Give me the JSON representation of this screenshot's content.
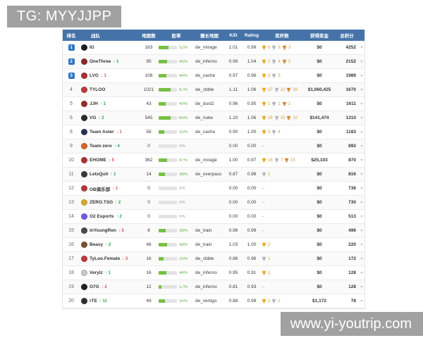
{
  "watermarks": {
    "top": "TG: MYYJJPP",
    "bottom": "www.yi-youtrip.com"
  },
  "colors": {
    "header_bg": "#4573a9",
    "badge_blue": "#2e75c3",
    "up_green": "#27a744",
    "down_red": "#d9534f",
    "bar_green": "#76c043",
    "watermark_gray": "#a1a1a1",
    "trophy_gold": "#e8a91c",
    "trophy_silver": "#b5b5bd",
    "trophy_bronze": "#d08a3e"
  },
  "table": {
    "headers": [
      "排名",
      "战队",
      "地图数",
      "胜率",
      "擅长地图",
      "K/D",
      "Rating",
      "奖杯数",
      "获得奖金",
      "总积分",
      ""
    ],
    "chevron_glyph": "▾",
    "no_trophy_text": "--",
    "rows": [
      {
        "rank": "1",
        "badge": true,
        "team": "IG",
        "logo_color": "#1f1f1f",
        "change": null,
        "maps": "163",
        "win_pct": 52,
        "win_label": "52%",
        "best_map": "de_mirage",
        "kd": "1.01",
        "rating": "0.99",
        "trophies": [
          {
            "t": "gold",
            "n": "6"
          },
          {
            "t": "silver",
            "n": "8"
          },
          {
            "t": "bronze",
            "n": "3"
          }
        ],
        "prize": "$0",
        "points": "4252"
      },
      {
        "rank": "2",
        "badge": true,
        "team": "OneThree",
        "logo_color": "#8d2a2a",
        "change": {
          "dir": "up",
          "n": "1"
        },
        "maps": "95",
        "win_pct": 45,
        "win_label": "45%",
        "best_map": "de_inferno",
        "kd": "0.99",
        "rating": "1.04",
        "trophies": [
          {
            "t": "gold",
            "n": "2"
          },
          {
            "t": "silver",
            "n": "4"
          },
          {
            "t": "bronze",
            "n": "2"
          }
        ],
        "prize": "$0",
        "points": "2152"
      },
      {
        "rank": "3",
        "badge": true,
        "team": "LVG",
        "logo_color": "#a83232",
        "change": {
          "dir": "down",
          "n": "1"
        },
        "maps": "108",
        "win_pct": 44,
        "win_label": "44%",
        "best_map": "de_cache",
        "kd": "0.97",
        "rating": "0.96",
        "trophies": [
          {
            "t": "gold",
            "n": "3"
          },
          {
            "t": "silver",
            "n": "5"
          }
        ],
        "prize": "$0",
        "points": "1989"
      },
      {
        "rank": "4",
        "badge": false,
        "team": "TYLOO",
        "logo_color": "#c03a3a",
        "change": null,
        "maps": "1021",
        "win_pct": 67,
        "win_label": "67%",
        "best_map": "de_cbble",
        "kd": "1.11",
        "rating": "1.06",
        "trophies": [
          {
            "t": "gold",
            "n": "37"
          },
          {
            "t": "silver",
            "n": "22"
          },
          {
            "t": "bronze",
            "n": "16"
          }
        ],
        "prize": "$1,060,425",
        "points": "1670"
      },
      {
        "rank": "5",
        "badge": false,
        "team": "JJH",
        "logo_color": "#9e2b2b",
        "change": {
          "dir": "up",
          "n": "1"
        },
        "maps": "43",
        "win_pct": 40,
        "win_label": "40%",
        "best_map": "de_dust2",
        "kd": "0.96",
        "rating": "0.95",
        "trophies": [
          {
            "t": "gold",
            "n": "1"
          },
          {
            "t": "silver",
            "n": "1"
          },
          {
            "t": "bronze",
            "n": "1"
          }
        ],
        "prize": "$0",
        "points": "1611"
      },
      {
        "rank": "6",
        "badge": false,
        "team": "VG",
        "logo_color": "#2b2b2b",
        "change": {
          "dir": "up",
          "n": "2"
        },
        "maps": "545",
        "win_pct": 65,
        "win_label": "65%",
        "best_map": "de_nuke",
        "kd": "1.10",
        "rating": "1.06",
        "trophies": [
          {
            "t": "gold",
            "n": "28"
          },
          {
            "t": "silver",
            "n": "15"
          },
          {
            "t": "bronze",
            "n": "10"
          }
        ],
        "prize": "$141,474",
        "points": "1310"
      },
      {
        "rank": "8",
        "badge": false,
        "team": "Team Aster",
        "logo_color": "#25335c",
        "change": {
          "dir": "down",
          "n": "1"
        },
        "maps": "58",
        "win_pct": 31,
        "win_label": "31%",
        "best_map": "de_cache",
        "kd": "0.90",
        "rating": "1.00",
        "trophies": [
          {
            "t": "gold",
            "n": "3"
          },
          {
            "t": "silver",
            "n": "4"
          }
        ],
        "prize": "$0",
        "points": "1183"
      },
      {
        "rank": "9",
        "badge": false,
        "team": "Team zero",
        "logo_color": "#d8652a",
        "change": {
          "dir": "up",
          "n": "4"
        },
        "maps": "0",
        "win_pct": 0,
        "win_label": "0%",
        "best_map": "",
        "kd": "0.00",
        "rating": "0.00",
        "trophies": [],
        "prize": "$0",
        "points": "892"
      },
      {
        "rank": "10",
        "badge": false,
        "team": "EHOME",
        "logo_color": "#b03030",
        "change": {
          "dir": "down",
          "n": "5"
        },
        "maps": "362",
        "win_pct": 47,
        "win_label": "47%",
        "best_map": "de_mirage",
        "kd": "1.00",
        "rating": "0.97",
        "trophies": [
          {
            "t": "gold",
            "n": "18"
          },
          {
            "t": "silver",
            "n": "7"
          },
          {
            "t": "bronze",
            "n": "15"
          }
        ],
        "prize": "$25,103",
        "points": "870"
      },
      {
        "rank": "11",
        "badge": false,
        "team": "LetsQuit",
        "logo_color": "#3a3a3a",
        "change": {
          "dir": "up",
          "n": "1"
        },
        "maps": "14",
        "win_pct": 36,
        "win_label": "36%",
        "best_map": "de_overpass",
        "kd": "0.87",
        "rating": "0.98",
        "trophies": [
          {
            "t": "silver",
            "n": "1"
          }
        ],
        "prize": "$0",
        "points": "816"
      },
      {
        "rank": "12",
        "badge": false,
        "team": "OB俱乐部",
        "logo_color": "#b53a3a",
        "change": {
          "dir": "down",
          "n": "1"
        },
        "maps": "0",
        "win_pct": 0,
        "win_label": "0%",
        "best_map": "",
        "kd": "0.00",
        "rating": "0.00",
        "trophies": [],
        "prize": "$0",
        "points": "736"
      },
      {
        "rank": "13",
        "badge": false,
        "team": "ZERO.TSG",
        "logo_color": "#d8a92a",
        "change": {
          "dir": "up",
          "n": "2"
        },
        "maps": "0",
        "win_pct": 0,
        "win_label": "0%",
        "best_map": "",
        "kd": "0.00",
        "rating": "0.00",
        "trophies": [],
        "prize": "$0",
        "points": "730"
      },
      {
        "rank": "14",
        "badge": false,
        "team": "O2 Esports",
        "logo_color": "#6c5ce7",
        "change": {
          "dir": "up",
          "n": "2"
        },
        "maps": "0",
        "win_pct": 0,
        "win_label": "0%",
        "best_map": "",
        "kd": "0.00",
        "rating": "0.00",
        "trophies": [],
        "prize": "$0",
        "points": "513"
      },
      {
        "rank": "15",
        "badge": false,
        "team": "inYoungRen",
        "logo_color": "#4a4a4a",
        "change": {
          "dir": "down",
          "n": "5"
        },
        "maps": "8",
        "win_pct": 38,
        "win_label": "38%",
        "best_map": "de_train",
        "kd": "0.96",
        "rating": "0.99",
        "trophies": [],
        "prize": "$0",
        "points": "496"
      },
      {
        "rank": "16",
        "badge": false,
        "team": "Beasy",
        "logo_color": "#7a5230",
        "change": {
          "dir": "up",
          "n": "2"
        },
        "maps": "46",
        "win_pct": 48,
        "win_label": "48%",
        "best_map": "de_train",
        "kd": "1.03",
        "rating": "1.00",
        "trophies": [
          {
            "t": "gold",
            "n": "2"
          }
        ],
        "prize": "$0",
        "points": "220"
      },
      {
        "rank": "17",
        "badge": false,
        "team": "TyLoo.Female",
        "logo_color": "#c03a3a",
        "change": {
          "dir": "down",
          "n": "3"
        },
        "maps": "16",
        "win_pct": 25,
        "win_label": "25%",
        "best_map": "de_cbble",
        "kd": "0.86",
        "rating": "0.96",
        "trophies": [
          {
            "t": "silver",
            "n": "1"
          }
        ],
        "prize": "$0",
        "points": "172"
      },
      {
        "rank": "18",
        "badge": false,
        "team": "VeryIz",
        "logo_color": "#c9c9c9",
        "change": {
          "dir": "up",
          "n": "1"
        },
        "maps": "16",
        "win_pct": 44,
        "win_label": "44%",
        "best_map": "de_inferno",
        "kd": "0.95",
        "rating": "0.91",
        "trophies": [
          {
            "t": "gold",
            "n": "1"
          }
        ],
        "prize": "$0",
        "points": "128"
      },
      {
        "rank": "19",
        "badge": false,
        "team": "O7G",
        "logo_color": "#222222",
        "change": {
          "dir": "down",
          "n": "2"
        },
        "maps": "12",
        "win_pct": 17,
        "win_label": "17%",
        "best_map": "de_inferno",
        "kd": "0.81",
        "rating": "0.93",
        "trophies": [],
        "prize": "$0",
        "points": "128"
      },
      {
        "rank": "20",
        "badge": false,
        "team": "rTE",
        "logo_color": "#303030",
        "change": {
          "dir": "up",
          "n": "11"
        },
        "maps": "49",
        "win_pct": 35,
        "win_label": "35%",
        "best_map": "de_vertigo",
        "kd": "0.88",
        "rating": "0.98",
        "trophies": [
          {
            "t": "gold",
            "n": "2"
          },
          {
            "t": "silver",
            "n": "2"
          }
        ],
        "prize": "$1,172",
        "points": "78"
      }
    ]
  }
}
